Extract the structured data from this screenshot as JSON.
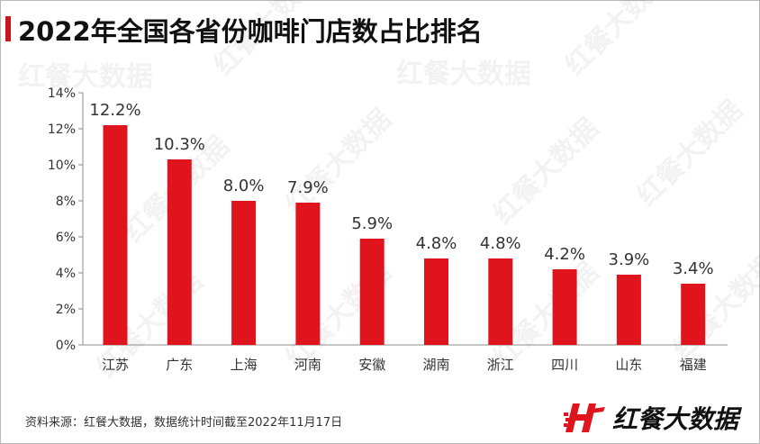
{
  "title": "2022年全国各省份咖啡门店数占比排名",
  "source_note": "资料来源：红餐大数据，数据统计时间截至2022年11月17日",
  "brand": {
    "name": "红餐大数据",
    "logo_icon": "hc-logo-icon"
  },
  "watermark_text": "红餐大数据",
  "colors": {
    "bar": "#e0141c",
    "accent": "#c8161d",
    "axis": "#8c8c8c",
    "text": "#333333"
  },
  "chart_data": {
    "type": "bar",
    "categories": [
      "江苏",
      "广东",
      "上海",
      "河南",
      "安徽",
      "湖南",
      "浙江",
      "四川",
      "山东",
      "福建"
    ],
    "values": [
      12.2,
      10.3,
      8.0,
      7.9,
      5.9,
      4.8,
      4.8,
      4.2,
      3.9,
      3.4
    ],
    "value_labels": [
      "12.2%",
      "10.3%",
      "8.0%",
      "7.9%",
      "5.9%",
      "4.8%",
      "4.8%",
      "4.2%",
      "3.9%",
      "3.4%"
    ],
    "yticks": [
      "0%",
      "2%",
      "4%",
      "6%",
      "8%",
      "10%",
      "12%",
      "14%"
    ],
    "ylim": [
      0,
      14
    ],
    "grid": false,
    "legend": "none"
  }
}
